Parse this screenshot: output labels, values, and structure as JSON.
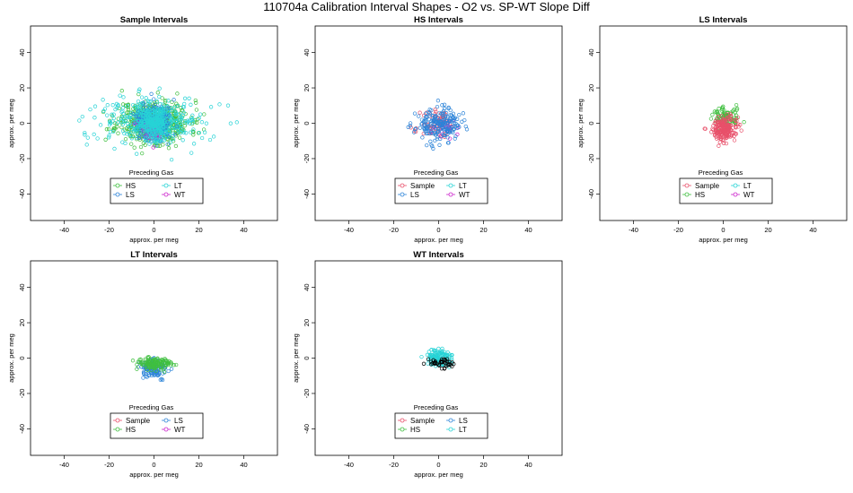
{
  "figure_title": "110704a   Calibration Interval Shapes - O2 vs. SP-WT Slope Diff",
  "colors": {
    "Sample": "#e8506a",
    "HS": "#3fbf3f",
    "LS": "#2c84d8",
    "LT": "#27d3d6",
    "WT": "#cc22cc",
    "black": "#000000"
  },
  "chart_data": [
    {
      "type": "scatter",
      "title": "Sample Intervals",
      "xlabel": "approx. per meg",
      "ylabel": "approx. per meg",
      "xlim": [
        -55,
        55
      ],
      "ylim": [
        -55,
        55
      ],
      "xticks": [
        "-40",
        "-20",
        "0",
        "20",
        "40"
      ],
      "yticks": [
        "-40",
        "-20",
        "0",
        "20",
        "40"
      ],
      "legend": {
        "title": "Preceding Gas",
        "entries": [
          "HS",
          "LT",
          "LS",
          "WT"
        ],
        "placement": "bottom-center"
      },
      "series": [
        {
          "name": "HS",
          "center": [
            0,
            1
          ],
          "spread": [
            8,
            6
          ],
          "count": 500,
          "seed": 11
        },
        {
          "name": "LT",
          "center": [
            0,
            1
          ],
          "spread": [
            12,
            7
          ],
          "count": 300,
          "seed": 12
        },
        {
          "name": "LS",
          "center": [
            0,
            0
          ],
          "spread": [
            4,
            5
          ],
          "count": 250,
          "seed": 13
        },
        {
          "name": "WT",
          "center": [
            0,
            -4
          ],
          "spread": [
            3,
            3
          ],
          "count": 30,
          "seed": 14
        },
        {
          "name": "LT",
          "center": [
            0,
            1
          ],
          "spread": [
            3.5,
            4.5
          ],
          "count": 280,
          "seed": 15
        }
      ]
    },
    {
      "type": "scatter",
      "title": "HS Intervals",
      "xlabel": "approx. per meg",
      "ylabel": "approx. per meg",
      "xlim": [
        -55,
        55
      ],
      "ylim": [
        -55,
        55
      ],
      "xticks": [
        "-40",
        "-20",
        "0",
        "20",
        "40"
      ],
      "yticks": [
        "-40",
        "-20",
        "0",
        "20",
        "40"
      ],
      "legend": {
        "title": "Preceding Gas",
        "entries": [
          "Sample",
          "LT",
          "LS",
          "WT"
        ],
        "placement": "bottom-center"
      },
      "series": [
        {
          "name": "Sample",
          "center": [
            0,
            -1
          ],
          "spread": [
            4,
            4
          ],
          "count": 70,
          "seed": 21
        },
        {
          "name": "WT",
          "center": [
            2,
            -3
          ],
          "spread": [
            3,
            3
          ],
          "count": 20,
          "seed": 22
        },
        {
          "name": "LS",
          "center": [
            0,
            -1
          ],
          "spread": [
            5,
            4.5
          ],
          "count": 200,
          "seed": 23
        }
      ]
    },
    {
      "type": "scatter",
      "title": "LS Intervals",
      "xlabel": "approx. per meg",
      "ylabel": "approx. per meg",
      "xlim": [
        -55,
        55
      ],
      "ylim": [
        -55,
        55
      ],
      "xticks": [
        "-40",
        "-20",
        "0",
        "20",
        "40"
      ],
      "yticks": [
        "-40",
        "-20",
        "0",
        "20",
        "40"
      ],
      "legend": {
        "title": "Preceding Gas",
        "entries": [
          "Sample",
          "LT",
          "HS",
          "WT"
        ],
        "placement": "bottom-center"
      },
      "series": [
        {
          "name": "HS",
          "center": [
            1,
            3
          ],
          "spread": [
            3,
            3
          ],
          "count": 110,
          "seed": 31
        },
        {
          "name": "Sample",
          "center": [
            0,
            -3
          ],
          "spread": [
            3,
            3.5
          ],
          "count": 200,
          "seed": 32
        }
      ]
    },
    {
      "type": "scatter",
      "title": "LT Intervals",
      "xlabel": "approx. per meg",
      "ylabel": "approx. per meg",
      "xlim": [
        -55,
        55
      ],
      "ylim": [
        -55,
        55
      ],
      "xticks": [
        "-40",
        "-20",
        "0",
        "20",
        "40"
      ],
      "yticks": [
        "-40",
        "-20",
        "0",
        "20",
        "40"
      ],
      "legend": {
        "title": "Preceding Gas",
        "entries": [
          "Sample",
          "LS",
          "HS",
          "WT"
        ],
        "placement": "bottom-center"
      },
      "series": [
        {
          "name": "LS",
          "center": [
            0,
            -6
          ],
          "spread": [
            3,
            2.5
          ],
          "count": 110,
          "seed": 41
        },
        {
          "name": "HS",
          "center": [
            0,
            -3
          ],
          "spread": [
            4,
            1.8
          ],
          "count": 130,
          "seed": 42
        }
      ]
    },
    {
      "type": "scatter",
      "title": "WT Intervals",
      "xlabel": "approx. per meg",
      "ylabel": "approx. per meg",
      "xlim": [
        -55,
        55
      ],
      "ylim": [
        -55,
        55
      ],
      "xticks": [
        "-40",
        "-20",
        "0",
        "20",
        "40"
      ],
      "yticks": [
        "-40",
        "-20",
        "0",
        "20",
        "40"
      ],
      "legend": {
        "title": "Preceding Gas",
        "entries": [
          "Sample",
          "LS",
          "HS",
          "LT"
        ],
        "placement": "bottom-center"
      },
      "series": [
        {
          "name": "LT",
          "center": [
            0,
            0
          ],
          "spread": [
            3,
            2.5
          ],
          "count": 130,
          "seed": 51
        },
        {
          "name": "black",
          "center": [
            1,
            -3
          ],
          "spread": [
            3,
            1.5
          ],
          "count": 40,
          "seed": 52
        }
      ]
    }
  ]
}
